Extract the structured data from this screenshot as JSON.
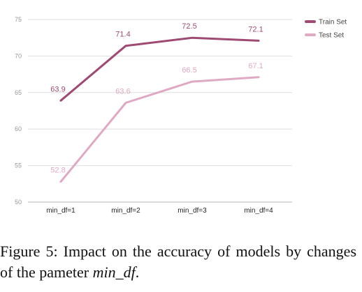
{
  "chart_data": {
    "type": "line",
    "categories": [
      "min_df=1",
      "min_df=2",
      "min_df=3",
      "min_df=4"
    ],
    "series": [
      {
        "name": "Train Set",
        "values": [
          63.9,
          71.4,
          72.5,
          72.1
        ],
        "color": "#9e4a72",
        "labels": [
          "63.9",
          "71.4",
          "72.5",
          "72.1"
        ]
      },
      {
        "name": "Test Set",
        "values": [
          52.8,
          63.6,
          66.5,
          67.1
        ],
        "color": "#e0a9c3",
        "labels": [
          "52.8",
          "63.6",
          "66.5",
          "67.1"
        ]
      }
    ],
    "ylim": [
      50,
      75
    ],
    "yticks": [
      50,
      55,
      60,
      65,
      70,
      75
    ],
    "grid": true,
    "legend": "top-right"
  },
  "caption": {
    "text": "Figure 5:  Impact on the accuracy of models by changes of the pameter ",
    "param": "min_df",
    "end": "."
  }
}
